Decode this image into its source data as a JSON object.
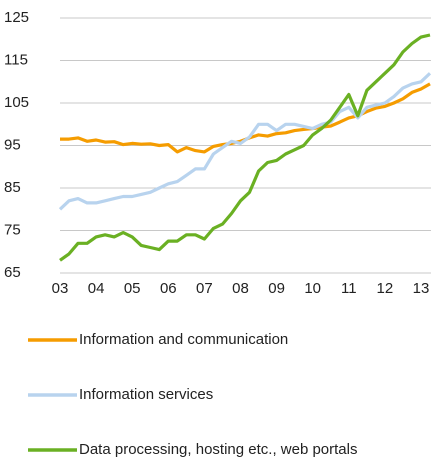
{
  "chart_data": {
    "type": "line",
    "x": [
      2003,
      2003.25,
      2003.5,
      2003.75,
      2004,
      2004.25,
      2004.5,
      2004.75,
      2005,
      2005.25,
      2005.5,
      2005.75,
      2006,
      2006.25,
      2006.5,
      2006.75,
      2007,
      2007.25,
      2007.5,
      2007.75,
      2008,
      2008.25,
      2008.5,
      2008.75,
      2009,
      2009.25,
      2009.5,
      2009.75,
      2010,
      2010.25,
      2010.5,
      2010.75,
      2011,
      2011.25,
      2011.5,
      2011.75,
      2012,
      2012.25,
      2012.5,
      2012.75,
      2013,
      2013.25
    ],
    "series": [
      {
        "name": "Information and communication",
        "color": "#f59c00",
        "values": [
          96.5,
          96.5,
          96.8,
          96,
          96.3,
          95.8,
          95.9,
          95.2,
          95.5,
          95.3,
          95.4,
          95,
          95.2,
          93.5,
          94.5,
          93.8,
          93.5,
          94.8,
          95.2,
          95.5,
          96,
          96.8,
          97.5,
          97.2,
          97.8,
          98,
          98.5,
          98.8,
          99,
          99.3,
          99.6,
          100.5,
          101.5,
          102,
          103,
          103.8,
          104.2,
          105,
          106,
          107.5,
          108.3,
          109.5
        ]
      },
      {
        "name": "Information services",
        "color": "#b8d3ee",
        "values": [
          80,
          82,
          82.5,
          81.5,
          81.5,
          82,
          82.5,
          83,
          83,
          83.5,
          84,
          85,
          86,
          86.5,
          88,
          89.5,
          89.5,
          93,
          94.5,
          96,
          95.5,
          97,
          100,
          100,
          98.5,
          100,
          100,
          99.5,
          99,
          100,
          100.5,
          103,
          104,
          101.5,
          104,
          104.5,
          105,
          106.5,
          108.5,
          109.5,
          110,
          112
        ]
      },
      {
        "name": "Data processing, hosting etc., web portals",
        "color": "#6ab023",
        "values": [
          68,
          69.5,
          72,
          72,
          73.5,
          74,
          73.5,
          74.5,
          73.5,
          71.5,
          71,
          70.5,
          72.5,
          72.5,
          74,
          74,
          73,
          75.5,
          76.5,
          79,
          82,
          84,
          89,
          91,
          91.5,
          93,
          94,
          95,
          97.5,
          99,
          101,
          104,
          107,
          102,
          108,
          110,
          112,
          114,
          117,
          119,
          120.5,
          121
        ]
      }
    ],
    "xlim": [
      2003,
      2013.25
    ],
    "xticks": [
      {
        "value": 2003,
        "label": "03"
      },
      {
        "value": 2004,
        "label": "04"
      },
      {
        "value": 2005,
        "label": "05"
      },
      {
        "value": 2006,
        "label": "06"
      },
      {
        "value": 2007,
        "label": "07"
      },
      {
        "value": 2008,
        "label": "08"
      },
      {
        "value": 2009,
        "label": "09"
      },
      {
        "value": 2010,
        "label": "10"
      },
      {
        "value": 2011,
        "label": "11"
      },
      {
        "value": 2012,
        "label": "12"
      },
      {
        "value": 2013,
        "label": "13"
      }
    ],
    "ylim": [
      65,
      125
    ],
    "yticks": [
      65,
      75,
      85,
      95,
      105,
      115,
      125
    ],
    "grid": true
  }
}
